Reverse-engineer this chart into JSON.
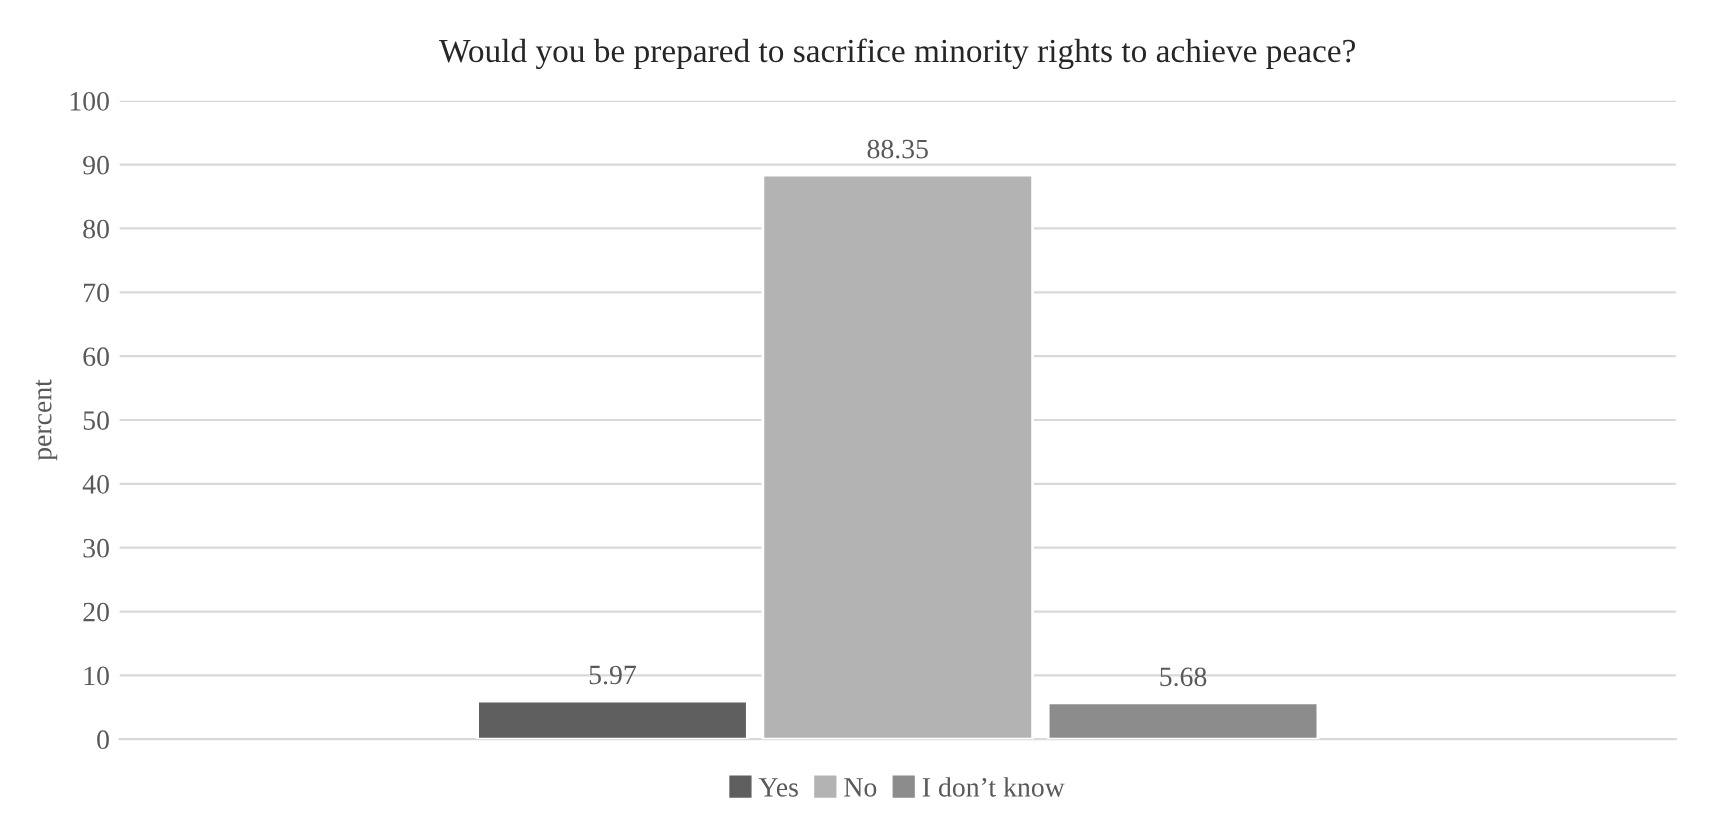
{
  "chart_data": {
    "type": "bar",
    "title": "Would you be prepared to sacrifice minority rights to achieve peace?",
    "ylabel": "percent",
    "categories": [
      null
    ],
    "series": [
      {
        "name": "Yes",
        "color": "#5f5f5f",
        "values": [
          5.97
        ]
      },
      {
        "name": "No",
        "color": "#b3b3b3",
        "values": [
          88.35
        ]
      },
      {
        "name": "I don’t know",
        "color": "#8c8c8c",
        "values": [
          5.68
        ]
      }
    ],
    "ylim": [
      0,
      100
    ],
    "yticks": [
      0,
      10,
      20,
      30,
      40,
      50,
      60,
      70,
      80,
      90,
      100
    ],
    "grid": "y",
    "data_labels": true,
    "legend": "bottom",
    "tick_labels": "y"
  }
}
